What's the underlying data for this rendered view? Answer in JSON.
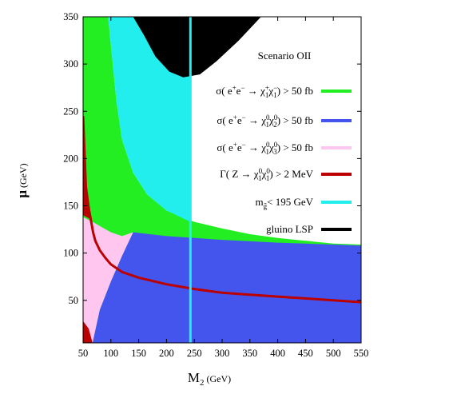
{
  "chart_data": {
    "type": "area",
    "title": "Scenario OII",
    "xlabel": "M",
    "xlabel_sub": "2",
    "xlabel_unit": "(GeV)",
    "ylabel": "μ",
    "ylabel_unit": "(GeV)",
    "xlim": [
      50,
      550
    ],
    "ylim": [
      5,
      350
    ],
    "x_ticks": [
      50,
      100,
      150,
      200,
      250,
      300,
      350,
      400,
      450,
      500,
      550
    ],
    "y_ticks": [
      50,
      100,
      150,
      200,
      250,
      300,
      350
    ],
    "series": [
      {
        "id": "chargino",
        "legend": {
          "parts": [
            {
              "t": "σ( e"
            },
            {
              "t": "+",
              "sup": true
            },
            {
              "t": "e"
            },
            {
              "t": "−",
              "sup": true
            },
            {
              "t": " → χ"
            },
            {
              "t": "+",
              "sup": true
            },
            {
              "t": "1",
              "sub": true,
              "back": true
            },
            {
              "t": "χ"
            },
            {
              "t": "−",
              "sup": true
            },
            {
              "t": "1",
              "sub": true,
              "back": true
            },
            {
              "t": ") > 50 fb"
            }
          ]
        },
        "color": "#22ee22",
        "kind": "region",
        "upper_boundary": [
          [
            50,
            350
          ],
          [
            95,
            350
          ],
          [
            100,
            320
          ],
          [
            110,
            260
          ],
          [
            120,
            220
          ],
          [
            140,
            185
          ],
          [
            165,
            162
          ],
          [
            200,
            145
          ],
          [
            250,
            133
          ],
          [
            300,
            126
          ],
          [
            350,
            120
          ],
          [
            400,
            116
          ],
          [
            450,
            113
          ],
          [
            500,
            110
          ],
          [
            550,
            109
          ]
        ]
      },
      {
        "id": "neutralino12",
        "legend": {
          "parts": [
            {
              "t": "σ( e"
            },
            {
              "t": "+",
              "sup": true
            },
            {
              "t": "e"
            },
            {
              "t": "−",
              "sup": true
            },
            {
              "t": " → χ"
            },
            {
              "t": "0",
              "sup": true
            },
            {
              "t": "1",
              "sub": true,
              "back": true
            },
            {
              "t": "χ"
            },
            {
              "t": "0",
              "sup": true
            },
            {
              "t": "2",
              "sub": true,
              "back": true
            },
            {
              "t": ") > 50 fb"
            }
          ]
        },
        "color": "#4455ee",
        "kind": "region",
        "boundary": [
          [
            67,
            5
          ],
          [
            80,
            40
          ],
          [
            100,
            70
          ],
          [
            120,
            97
          ],
          [
            140,
            122
          ],
          [
            200,
            118
          ],
          [
            300,
            114
          ],
          [
            400,
            111
          ],
          [
            550,
            108
          ]
        ]
      },
      {
        "id": "neutralino13",
        "legend": {
          "parts": [
            {
              "t": "σ( e"
            },
            {
              "t": "+",
              "sup": true
            },
            {
              "t": "e"
            },
            {
              "t": "−",
              "sup": true
            },
            {
              "t": " → χ"
            },
            {
              "t": "0",
              "sup": true
            },
            {
              "t": "1",
              "sub": true,
              "back": true
            },
            {
              "t": "χ"
            },
            {
              "t": "0",
              "sup": true
            },
            {
              "t": "3",
              "sub": true,
              "back": true
            },
            {
              "t": ") > 50 fb"
            }
          ]
        },
        "color": "#ffc6f0",
        "kind": "region",
        "boundary": [
          [
            50,
            138
          ],
          [
            70,
            132
          ],
          [
            100,
            122
          ],
          [
            120,
            118
          ],
          [
            140,
            122
          ]
        ]
      },
      {
        "id": "zwidth",
        "legend": {
          "parts": [
            {
              "t": "Γ( Z → χ"
            },
            {
              "t": "0",
              "sup": true
            },
            {
              "t": "1",
              "sub": true,
              "back": true
            },
            {
              "t": "χ"
            },
            {
              "t": "0",
              "sup": true
            },
            {
              "t": "1",
              "sub": true,
              "back": true
            },
            {
              "t": ") > 2 MeV"
            }
          ]
        },
        "color": "#bb0000",
        "kind": "curve",
        "x": [
          50,
          55,
          60,
          65,
          68,
          72,
          80,
          90,
          100,
          120,
          150,
          200,
          250,
          300,
          350,
          400,
          450,
          500,
          550
        ],
        "y": [
          245,
          170,
          148,
          132,
          122,
          113,
          103,
          95,
          88,
          80,
          74,
          67,
          62,
          58,
          56,
          54,
          52,
          50,
          48
        ]
      },
      {
        "id": "gluino",
        "legend": {
          "parts": [
            {
              "t": "m"
            },
            {
              "t": "g̃",
              "sub": true
            },
            {
              "t": "< 195 GeV"
            }
          ]
        },
        "color": "#22eeee",
        "kind": "region",
        "x_boundary": 243
      },
      {
        "id": "lsp",
        "legend": {
          "parts": [
            {
              "t": "gluino LSP"
            }
          ]
        },
        "color": "#000000",
        "kind": "region",
        "boundary": [
          [
            140,
            350
          ],
          [
            160,
            330
          ],
          [
            180,
            308
          ],
          [
            205,
            292
          ],
          [
            230,
            286
          ],
          [
            260,
            289
          ],
          [
            290,
            303
          ],
          [
            330,
            325
          ],
          [
            370,
            350
          ]
        ]
      }
    ]
  }
}
